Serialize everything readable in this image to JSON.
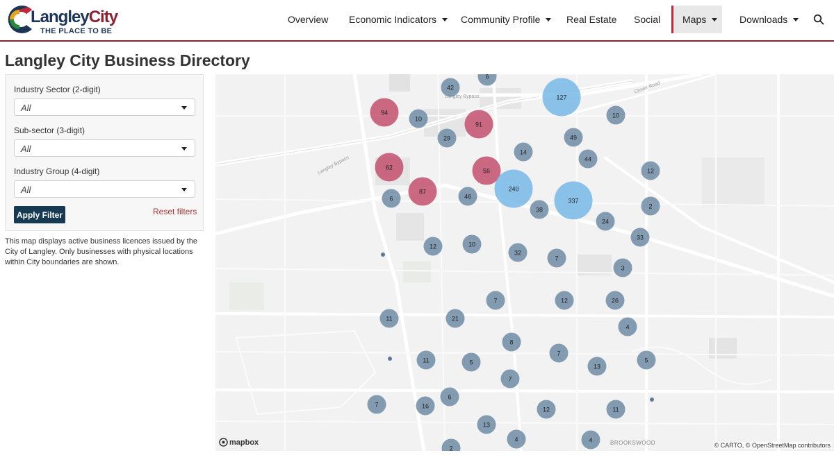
{
  "logo": {
    "title_part1": "Langley",
    "title_part2": "City",
    "tagline": "THE PLACE TO BE"
  },
  "nav": [
    {
      "label": "Overview",
      "dropdown": false
    },
    {
      "label": "Economic Indicators",
      "dropdown": true
    },
    {
      "label": "Community Profile",
      "dropdown": true
    },
    {
      "label": "Real Estate",
      "dropdown": false
    },
    {
      "label": "Social",
      "dropdown": false
    },
    {
      "label": "Maps",
      "dropdown": true,
      "active": true
    },
    {
      "label": "Downloads",
      "dropdown": true
    }
  ],
  "page_title": "Langley City Business Directory",
  "filters": {
    "sector_label": "Industry Sector (2-digit)",
    "sector_value": "All",
    "subsector_label": "Sub-sector (3-digit)",
    "subsector_value": "All",
    "group_label": "Industry Group (4-digit)",
    "group_value": "All",
    "apply_label": "Apply Filter",
    "reset_label": "Reset filters"
  },
  "description": "This map displays active business licences issued by the City of Langley. Only businesses with physical locations within City boundaries are shown.",
  "map": {
    "road_labels": [
      "Langley Bypass",
      "Langley Bypass",
      "Clover Road"
    ],
    "area_label": "BROOKSWOOD",
    "attribution": "© CARTO, © OpenStreetMap contributors",
    "provider": "mapbox",
    "clusters": [
      "6",
      "42",
      "127",
      "94",
      "10",
      "91",
      "10",
      "49",
      "29",
      "14",
      "44",
      "62",
      "56",
      "240",
      "12",
      "87",
      "6",
      "46",
      "337",
      "38",
      "2",
      "24",
      "33",
      "12",
      "10",
      "32",
      "7",
      "3",
      "7",
      "12",
      "26",
      "11",
      "21",
      "4",
      "8",
      "7",
      "11",
      "5",
      "13",
      "5",
      "7",
      "6",
      "16",
      "7",
      "12",
      "11",
      "13",
      "4",
      "4",
      "2"
    ]
  },
  "colors": {
    "accent": "#8b2232",
    "button": "#153a52",
    "cluster_small": "#6e8ca5",
    "cluster_medium": "#c3506e",
    "cluster_large": "#6eb4e6"
  }
}
